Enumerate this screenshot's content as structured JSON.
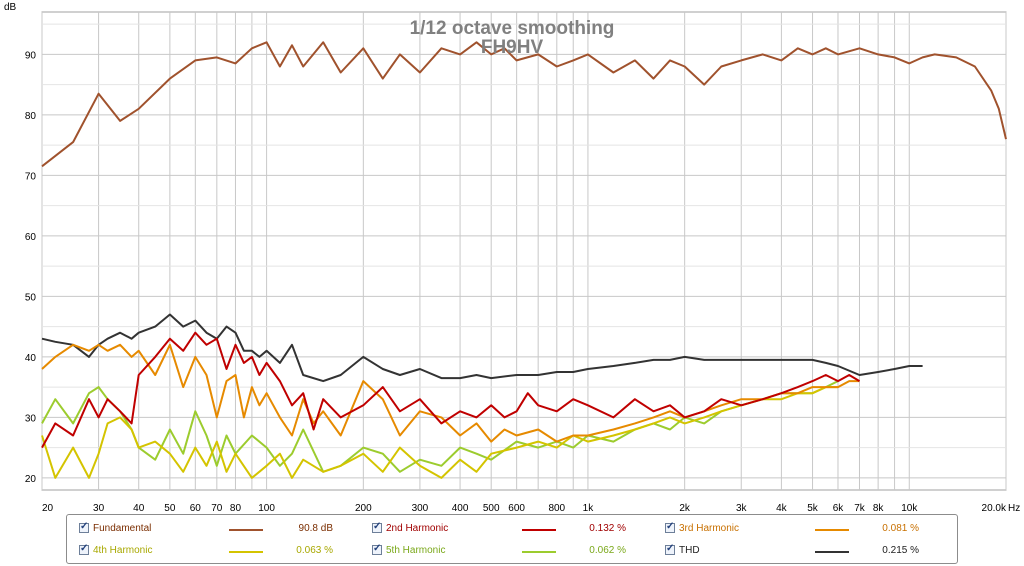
{
  "chart_data": {
    "type": "line",
    "title": "1/12 octave smoothing",
    "subtitle": "FH9HV",
    "y_unit_label": "dB",
    "x_unit_label": "Hz",
    "x_scale": "log",
    "xlim": [
      20,
      20000
    ],
    "ylim": [
      18,
      97
    ],
    "grid": true,
    "y_ticks": [
      20,
      30,
      40,
      50,
      60,
      70,
      80,
      90
    ],
    "x_ticks": [
      {
        "value": 20,
        "label": "20"
      },
      {
        "value": 30,
        "label": "30"
      },
      {
        "value": 40,
        "label": "40"
      },
      {
        "value": 50,
        "label": "50"
      },
      {
        "value": 60,
        "label": "60"
      },
      {
        "value": 70,
        "label": "70"
      },
      {
        "value": 80,
        "label": "80"
      },
      {
        "value": 100,
        "label": "100"
      },
      {
        "value": 200,
        "label": "200"
      },
      {
        "value": 300,
        "label": "300"
      },
      {
        "value": 400,
        "label": "400"
      },
      {
        "value": 500,
        "label": "500"
      },
      {
        "value": 600,
        "label": "600"
      },
      {
        "value": 800,
        "label": "800"
      },
      {
        "value": 1000,
        "label": "1k"
      },
      {
        "value": 2000,
        "label": "2k"
      },
      {
        "value": 3000,
        "label": "3k"
      },
      {
        "value": 4000,
        "label": "4k"
      },
      {
        "value": 5000,
        "label": "5k"
      },
      {
        "value": 6000,
        "label": "6k"
      },
      {
        "value": 7000,
        "label": "7k"
      },
      {
        "value": 8000,
        "label": "8k"
      },
      {
        "value": 10000,
        "label": "10k"
      },
      {
        "value": 20000,
        "label": "20.0k"
      }
    ],
    "series": [
      {
        "name": "Fundamental",
        "color": "#a0522d",
        "value": "90.8 dB",
        "x": [
          20,
          25,
          30,
          35,
          40,
          50,
          60,
          70,
          80,
          90,
          100,
          110,
          120,
          130,
          150,
          170,
          200,
          230,
          260,
          300,
          350,
          400,
          450,
          500,
          550,
          600,
          700,
          800,
          900,
          1000,
          1200,
          1400,
          1600,
          1800,
          2000,
          2300,
          2600,
          3000,
          3500,
          4000,
          4500,
          5000,
          5500,
          6000,
          7000,
          8000,
          9000,
          10000,
          11000,
          12000,
          14000,
          16000,
          18000,
          19000,
          20000
        ],
        "y": [
          71.5,
          75.5,
          83.5,
          79,
          81,
          86,
          89,
          89.5,
          88.5,
          91,
          92,
          88,
          91.5,
          88,
          92,
          87,
          91,
          86,
          90,
          87,
          91,
          90,
          92,
          90,
          91,
          89,
          90,
          88,
          89,
          90,
          87,
          89,
          86,
          89,
          88,
          85,
          88,
          89,
          90,
          89,
          91,
          90,
          91,
          90,
          91,
          90,
          89.5,
          88.5,
          89.5,
          90,
          89.5,
          88,
          84,
          81,
          76
        ]
      },
      {
        "name": "2nd Harmonic",
        "color": "#c00000",
        "value": "0.132 %",
        "x": [
          20,
          22,
          25,
          28,
          30,
          32,
          35,
          38,
          40,
          45,
          50,
          55,
          60,
          65,
          70,
          75,
          80,
          85,
          90,
          95,
          100,
          110,
          120,
          130,
          140,
          150,
          170,
          200,
          230,
          260,
          300,
          350,
          400,
          450,
          500,
          550,
          600,
          650,
          700,
          800,
          900,
          1000,
          1200,
          1400,
          1600,
          1800,
          2000,
          2300,
          2600,
          3000,
          3500,
          4000,
          4500,
          5000,
          5500,
          6000,
          6500,
          7000
        ],
        "y": [
          25,
          29,
          27,
          33,
          30,
          33,
          31,
          29,
          37,
          40,
          43,
          41,
          44,
          42,
          43,
          38,
          42,
          39,
          40,
          37,
          39,
          36,
          32,
          34,
          28,
          33,
          30,
          32,
          35,
          31,
          33,
          29,
          31,
          30,
          32,
          30,
          31,
          34,
          32,
          31,
          33,
          32,
          30,
          33,
          31,
          32,
          30,
          31,
          33,
          32,
          33,
          34,
          35,
          36,
          37,
          36,
          37,
          36
        ]
      },
      {
        "name": "3rd Harmonic",
        "color": "#e68a00",
        "value": "0.081 %",
        "x": [
          20,
          22,
          25,
          28,
          30,
          32,
          35,
          38,
          40,
          45,
          50,
          55,
          60,
          65,
          70,
          75,
          80,
          85,
          90,
          95,
          100,
          110,
          120,
          130,
          140,
          150,
          170,
          200,
          230,
          260,
          300,
          350,
          400,
          450,
          500,
          550,
          600,
          700,
          800,
          900,
          1000,
          1200,
          1400,
          1600,
          1800,
          2000,
          2300,
          2600,
          3000,
          3500,
          4000,
          4500,
          5000,
          5500,
          6000,
          6500,
          7000
        ],
        "y": [
          38,
          40,
          42,
          41,
          42,
          41,
          42,
          40,
          41,
          37,
          42,
          35,
          40,
          37,
          30,
          36,
          37,
          30,
          35,
          32,
          34,
          30,
          27,
          33,
          29,
          31,
          27,
          36,
          33,
          27,
          31,
          30,
          27,
          29,
          26,
          28,
          27,
          28,
          26,
          27,
          27,
          28,
          29,
          30,
          31,
          30,
          31,
          32,
          33,
          33,
          34,
          34,
          35,
          35,
          35,
          36,
          36
        ]
      },
      {
        "name": "4th Harmonic",
        "color": "#d4c400",
        "value": "0.063 %",
        "x": [
          20,
          22,
          25,
          28,
          30,
          32,
          35,
          38,
          40,
          45,
          50,
          55,
          60,
          65,
          70,
          75,
          80,
          90,
          100,
          110,
          120,
          130,
          150,
          170,
          200,
          230,
          260,
          300,
          350,
          400,
          450,
          500,
          600,
          700,
          800,
          900,
          1000,
          1200,
          1400,
          1600,
          1800,
          2000,
          2300,
          2600,
          3000,
          3500,
          4000,
          4500,
          5000,
          5500,
          6000
        ],
        "y": [
          27,
          20,
          25,
          20,
          24,
          29,
          30,
          28,
          25,
          26,
          24,
          21,
          25,
          22,
          26,
          21,
          24,
          20,
          22,
          24,
          20,
          23,
          21,
          22,
          24,
          21,
          25,
          22,
          20,
          23,
          21,
          24,
          25,
          26,
          25,
          27,
          26,
          27,
          28,
          29,
          30,
          29,
          30,
          31,
          32,
          33,
          33,
          34,
          34,
          35,
          35
        ]
      },
      {
        "name": "5th Harmonic",
        "color": "#9ccc2e",
        "value": "0.062 %",
        "x": [
          20,
          22,
          25,
          28,
          30,
          32,
          35,
          38,
          40,
          45,
          50,
          55,
          60,
          65,
          70,
          75,
          80,
          90,
          100,
          110,
          120,
          130,
          150,
          170,
          200,
          230,
          260,
          300,
          350,
          400,
          450,
          500,
          600,
          700,
          800,
          900,
          1000,
          1200,
          1400,
          1600,
          1800,
          2000,
          2300,
          2600,
          3000,
          3500,
          4000,
          4500,
          5000,
          5500,
          6000
        ],
        "y": [
          29,
          33,
          29,
          34,
          35,
          33,
          31,
          28,
          25,
          23,
          28,
          24,
          31,
          27,
          22,
          27,
          24,
          27,
          25,
          22,
          24,
          28,
          21,
          22,
          25,
          24,
          21,
          23,
          22,
          25,
          24,
          23,
          26,
          25,
          26,
          25,
          27,
          26,
          28,
          29,
          28,
          30,
          29,
          31,
          32,
          33,
          34,
          34,
          34,
          35,
          36
        ]
      },
      {
        "name": "THD",
        "color": "#333333",
        "value": "0.215 %",
        "x": [
          20,
          22,
          25,
          28,
          30,
          32,
          35,
          38,
          40,
          45,
          50,
          55,
          60,
          65,
          70,
          75,
          80,
          85,
          90,
          95,
          100,
          110,
          120,
          130,
          150,
          170,
          200,
          230,
          260,
          300,
          350,
          400,
          450,
          500,
          600,
          700,
          800,
          900,
          1000,
          1200,
          1400,
          1600,
          1800,
          2000,
          2300,
          2600,
          3000,
          3500,
          4000,
          4500,
          5000,
          5500,
          6000,
          7000,
          8000,
          9000,
          10000,
          11000
        ],
        "y": [
          43,
          42.5,
          42,
          40,
          42,
          43,
          44,
          43,
          44,
          45,
          47,
          45,
          46,
          44,
          43,
          45,
          44,
          41,
          41,
          40,
          41,
          39,
          42,
          37,
          36,
          37,
          40,
          38,
          37,
          38,
          36.5,
          36.5,
          37,
          36.5,
          37,
          37,
          37.5,
          37.5,
          38,
          38.5,
          39,
          39.5,
          39.5,
          40,
          39.5,
          39.5,
          39.5,
          39.5,
          39.5,
          39.5,
          39.5,
          39,
          38.5,
          37,
          37.5,
          38,
          38.5,
          38.5
        ]
      }
    ]
  },
  "legend": {
    "items": [
      {
        "label": "Fundamental",
        "value": "90.8 dB",
        "color": "#a0522d",
        "text_color": "#7a2d00"
      },
      {
        "label": "2nd Harmonic",
        "value": "0.132 %",
        "color": "#c00000",
        "text_color": "#a00000"
      },
      {
        "label": "3rd Harmonic",
        "value": "0.081 %",
        "color": "#e68a00",
        "text_color": "#c87000"
      },
      {
        "label": "4th Harmonic",
        "value": "0.063 %",
        "color": "#d4c400",
        "text_color": "#a8a800"
      },
      {
        "label": "5th Harmonic",
        "value": "0.062 %",
        "color": "#9ccc2e",
        "text_color": "#7aa81a"
      },
      {
        "label": "THD",
        "value": "0.215 %",
        "color": "#333333",
        "text_color": "#202020"
      }
    ]
  }
}
